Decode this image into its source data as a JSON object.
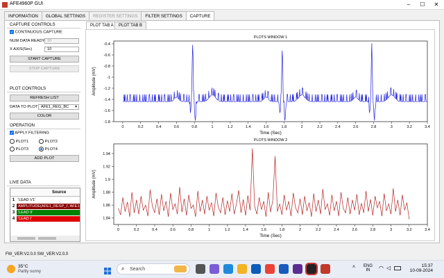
{
  "window": {
    "title": "AFE4960P GUI",
    "minimize": "–",
    "maximize": "☐",
    "close": "✕"
  },
  "menu_tabs": [
    {
      "label": "INFORMATION",
      "state": "normal"
    },
    {
      "label": "GLOBAL SETTINGS",
      "state": "normal"
    },
    {
      "label": "REGISTER SETTINGS",
      "state": "disabled"
    },
    {
      "label": "FILTER SETTINGS",
      "state": "normal"
    },
    {
      "label": "CAPTURE",
      "state": "active"
    }
  ],
  "capture_controls": {
    "title": "CAPTURE CONTROLS",
    "continuous_capture": {
      "label": "CONTINUOUS CAPTURE",
      "checked": true
    },
    "num_data_ready": {
      "label": "NUM DATA READY",
      "value": "10"
    },
    "x_axis": {
      "label": "X AXIS(Sec)",
      "value": "10"
    },
    "start_button": "START CAPTURE",
    "stop_button": "STOP CAPTURE"
  },
  "plot_controls": {
    "title": "PLOT CONTROLS",
    "refresh_button": "REFRESH LIST",
    "data_to_plot_label": "DATA TO PLOT",
    "data_to_plot_value": "AFE1_REG_BC",
    "color_button": "COLOR",
    "operation_title": "OPERATION",
    "apply_filtering": {
      "label": "APPLY FILTERING",
      "checked": true
    },
    "plots": [
      {
        "label": "PLOT1",
        "selected": false
      },
      {
        "label": "PLOT2",
        "selected": false
      },
      {
        "label": "PLOT3",
        "selected": false
      },
      {
        "label": "PLOT4",
        "selected": true
      }
    ],
    "add_plot_button": "ADD PLOT"
  },
  "live_data": {
    "title": "LIVE DATA",
    "column_header": "Source",
    "rows": [
      {
        "num": "1",
        "text": "'LEAD V1'",
        "bg": "#ffffff",
        "fg": "#000000"
      },
      {
        "num": "2",
        "text": "AMPLITUDE(AFE1_RESP_I','AFE1",
        "bg": "#8b0000",
        "fg": "#ffffff"
      },
      {
        "num": "3",
        "text": "'LEAD II'",
        "bg": "#008000",
        "fg": "#ffffff"
      },
      {
        "num": "4",
        "text": "'LEAD I'",
        "bg": "#e00000",
        "fg": "#ffffff"
      }
    ]
  },
  "plot_tabs": [
    {
      "label": "PLOT TAB A",
      "active": true
    },
    {
      "label": "PLOT TAB B",
      "active": false
    }
  ],
  "chart_data": [
    {
      "type": "line",
      "title": "PLOTS WINDOW 1",
      "xlabel": "Time (Sec)",
      "ylabel": "Amplitude (mV)",
      "color": "#2222dd",
      "xlim": [
        -0.1,
        3.4
      ],
      "ylim": [
        -1.8,
        -0.35
      ],
      "xticks": [
        "0",
        "0.2",
        "0.4",
        "0.6",
        "0.8",
        "1",
        "1.2",
        "1.4",
        "1.6",
        "1.8",
        "2",
        "2.2",
        "2.4",
        "2.6",
        "2.8",
        "3",
        "3.2",
        "3.4"
      ],
      "yticks": [
        "-0.4",
        "-0.6",
        "-0.8",
        "-1",
        "-1.2",
        "-1.4",
        "-1.6",
        "-1.8"
      ],
      "baseline": -1.44,
      "beats": [
        {
          "t": 0.78,
          "r_peak": -0.42,
          "s_trough": -1.78,
          "p_wave": -1.36,
          "t_wave": -1.32
        },
        {
          "t": 1.78,
          "r_peak": -0.52,
          "s_trough": -1.78,
          "p_wave": -1.36,
          "t_wave": -1.32
        },
        {
          "t": 2.78,
          "r_peak": -0.52,
          "s_trough": -1.78,
          "p_wave": -1.36,
          "t_wave": -1.32
        }
      ]
    },
    {
      "type": "line",
      "title": "PLOTS WINDOW 2",
      "xlabel": "Time (Sec)",
      "ylabel": "Amplitude (mV)",
      "color": "#b22222",
      "xlim": [
        -0.05,
        3.4
      ],
      "ylim": [
        1.83,
        1.955
      ],
      "xticks": [
        "0",
        "0.2",
        "0.4",
        "0.6",
        "0.8",
        "1",
        "1.2",
        "1.4",
        "1.6",
        "1.8",
        "2",
        "2.2",
        "2.4",
        "2.6",
        "2.8",
        "3",
        "3.2",
        "3.4"
      ],
      "yticks": [
        "1.94",
        "1.92",
        "1.9",
        "1.88",
        "1.86",
        "1.84"
      ],
      "x_start": 0.0,
      "x_step": 0.025,
      "values": [
        1.855,
        1.845,
        1.872,
        1.85,
        1.865,
        1.842,
        1.88,
        1.848,
        1.868,
        1.846,
        1.874,
        1.852,
        1.86,
        1.843,
        1.884,
        1.858,
        1.848,
        1.87,
        1.845,
        1.877,
        1.851,
        1.866,
        1.842,
        1.879,
        1.853,
        1.862,
        1.846,
        1.888,
        1.849,
        1.87,
        1.844,
        1.876,
        1.855,
        1.86,
        1.842,
        1.882,
        1.85,
        1.868,
        1.846,
        1.874,
        1.852,
        1.864,
        1.843,
        1.879,
        1.857,
        1.848,
        1.872,
        1.845,
        1.867,
        1.85,
        1.878,
        1.846,
        1.862,
        1.883,
        1.848,
        1.869,
        1.844,
        1.875,
        1.852,
        1.948,
        1.858,
        1.846,
        1.872,
        1.853,
        1.866,
        1.842,
        1.88,
        1.849,
        1.868,
        1.936,
        1.85,
        1.862,
        1.845,
        1.876,
        1.852,
        1.866,
        1.843,
        1.879,
        1.856,
        1.848,
        1.87,
        1.845,
        1.874,
        1.851,
        1.864,
        1.842,
        1.878,
        1.85,
        1.868,
        1.846,
        1.885,
        1.853,
        1.862,
        1.844,
        1.876,
        1.851,
        1.866,
        1.843,
        1.88,
        1.855,
        1.848,
        1.872,
        1.846,
        1.868,
        1.852,
        1.877,
        1.845,
        1.863,
        1.848,
        1.882,
        1.85,
        1.869,
        1.844,
        1.874,
        1.856,
        1.866,
        1.843,
        1.878,
        1.851,
        1.862,
        1.846,
        1.886,
        1.85,
        1.868,
        1.844,
        1.876,
        1.852,
        1.864,
        1.838
      ]
    }
  ],
  "status": {
    "fw_sw_version": "FW_VER:V2.0.0 SW_VER:V2.0.0"
  },
  "taskbar": {
    "weather_temp": "35°C",
    "weather_desc": "Partly sunny",
    "search_placeholder": "Search",
    "lang": "ENG",
    "region": "IN",
    "time": "15:37",
    "date": "10-09-2024"
  }
}
